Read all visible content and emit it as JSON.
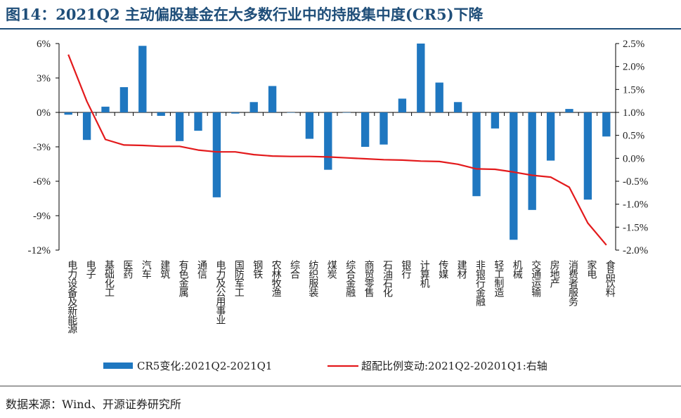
{
  "title": "图14：2021Q2 主动偏股基金在大多数行业中的持股集中度(CR5)下降",
  "source": "数据来源：Wind、开源证券研究所",
  "chart_data": {
    "type": "bar",
    "categories": [
      "电力设备及新能源",
      "电子",
      "基础化工",
      "医药",
      "汽车",
      "建筑",
      "有色金属",
      "通信",
      "电力及公用事业",
      "国防军工",
      "钢铁",
      "农林牧渔",
      "综合",
      "纺织服装",
      "煤炭",
      "综合金融",
      "商贸零售",
      "石油石化",
      "银行",
      "计算机",
      "传媒",
      "建材",
      "非银行金融",
      "轻工制造",
      "机械",
      "交通运输",
      "房地产",
      "消费者服务",
      "家电",
      "食品饮料"
    ],
    "series": [
      {
        "name": "CR5变化:2021Q2-2021Q1",
        "type": "bar",
        "axis": "left",
        "color": "#1f77c0",
        "values": [
          -0.2,
          -2.4,
          0.5,
          2.2,
          5.8,
          -0.3,
          -2.5,
          -1.6,
          -7.4,
          -0.1,
          0.9,
          2.3,
          0.0,
          -2.3,
          -5.0,
          0.0,
          -3.0,
          -2.8,
          1.2,
          6.0,
          2.6,
          0.9,
          -7.3,
          -1.4,
          -11.1,
          -8.5,
          -4.2,
          0.3,
          -7.6,
          -2.1
        ]
      },
      {
        "name": "超配比例变动:2021Q2-20201Q1:右轴",
        "type": "line",
        "axis": "right",
        "color": "#e31a1c",
        "values": [
          2.26,
          1.24,
          0.41,
          0.29,
          0.28,
          0.26,
          0.26,
          0.18,
          0.14,
          0.14,
          0.08,
          0.05,
          0.04,
          0.04,
          0.03,
          0.01,
          -0.01,
          -0.03,
          -0.04,
          -0.06,
          -0.07,
          -0.13,
          -0.23,
          -0.24,
          -0.3,
          -0.37,
          -0.41,
          -0.63,
          -1.41,
          -1.89
        ]
      }
    ],
    "y_left": {
      "min": -12,
      "max": 6,
      "ticks": [
        6,
        3,
        0,
        -3,
        -6,
        -9,
        -12
      ],
      "tick_labels": [
        "6%",
        "3%",
        "0%",
        "-3%",
        "-6%",
        "-9%",
        "-12%"
      ]
    },
    "y_right": {
      "min": -2.0,
      "max": 2.5,
      "ticks": [
        2.5,
        2.0,
        1.5,
        1.0,
        0.5,
        0.0,
        -0.5,
        -1.0,
        -1.5,
        -2.0
      ],
      "tick_labels": [
        "2.5%",
        "2.0%",
        "1.5%",
        "1.0%",
        "0.5%",
        "0.0%",
        "-0.5%",
        "-1.0%",
        "-1.5%",
        "-2.0%"
      ]
    },
    "grid": false,
    "legend": "bottom"
  }
}
